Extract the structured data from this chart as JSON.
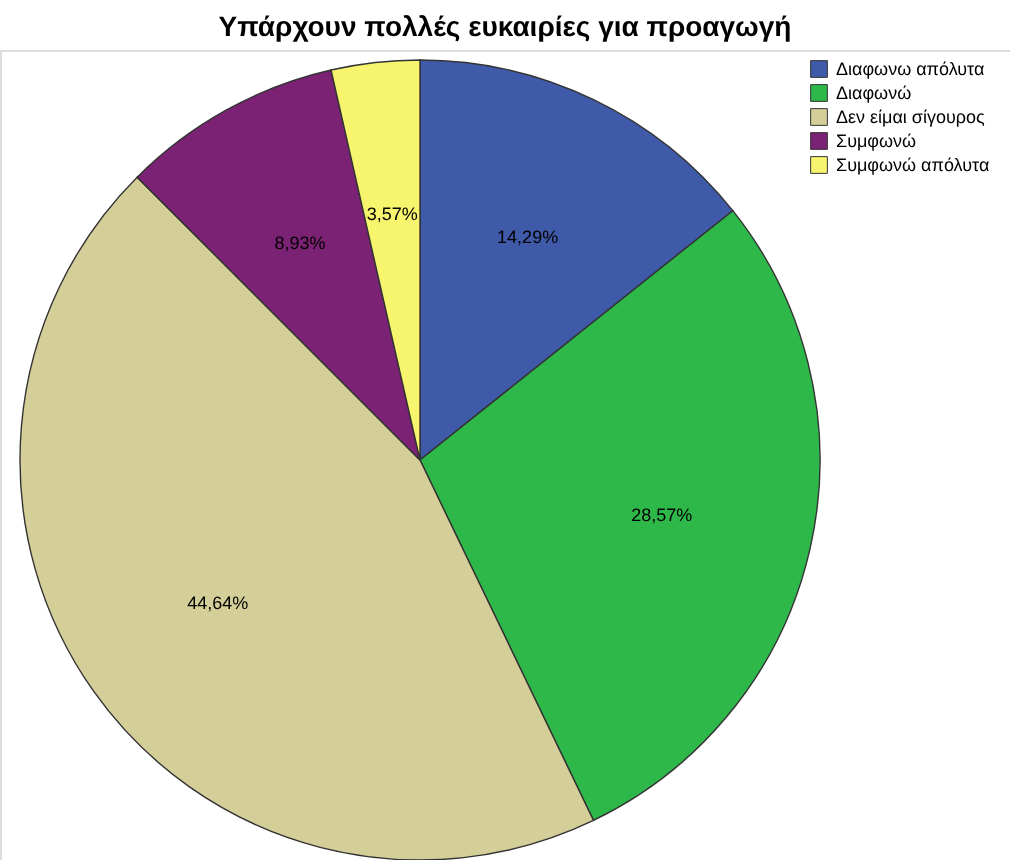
{
  "chart_data": {
    "type": "pie",
    "title": "Υπάρχουν πολλές ευκαιρίες για προαγωγή",
    "categories": [
      "Διαφωνω απόλυτα",
      "Διαφωνώ",
      "Δεν είμαι σίγουρος",
      "Συμφωνώ",
      "Συμφωνώ απόλυτα"
    ],
    "values": [
      14.29,
      28.57,
      44.64,
      8.93,
      3.57
    ],
    "value_labels": [
      "14,29%",
      "28,57%",
      "44,64%",
      "8,93%",
      "3,57%"
    ],
    "colors": [
      "#3f5aa8",
      "#2fb84a",
      "#d4cf98",
      "#7b2274",
      "#f7f56e"
    ],
    "legend": "top right"
  }
}
